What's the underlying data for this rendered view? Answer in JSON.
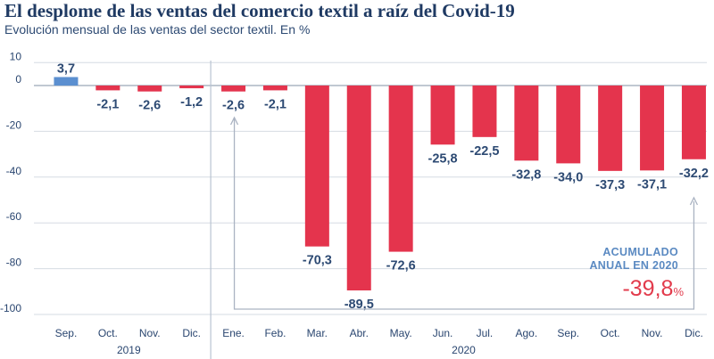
{
  "chart_data": {
    "type": "bar",
    "title": "El desplome de las ventas del comercio textil a raíz del Covid-19",
    "subtitle": "Evolución mensual de las ventas del sector textil. En %",
    "categories": [
      "Sep.",
      "Oct.",
      "Nov.",
      "Dic.",
      "Ene.",
      "Feb.",
      "Mar.",
      "Abr.",
      "May.",
      "Jun.",
      "Jul.",
      "Ago.",
      "Sep.",
      "Oct.",
      "Nov.",
      "Dic."
    ],
    "values": [
      3.7,
      -2.1,
      -2.6,
      -1.2,
      -2.6,
      -2.1,
      -70.3,
      -89.5,
      -72.6,
      -25.8,
      -22.5,
      -32.8,
      -34.0,
      -37.3,
      -37.1,
      -32.2
    ],
    "value_labels": [
      "3,7",
      "-2,1",
      "-2,6",
      "-1,2",
      "-2,6",
      "-2,1",
      "-70,3",
      "-89,5",
      "-72,6",
      "-25,8",
      "-22,5",
      "-32,8",
      "-34,0",
      "-37,3",
      "-37,1",
      "-32,2"
    ],
    "years": [
      {
        "label": "2019",
        "start": 0,
        "end": 3
      },
      {
        "label": "2020",
        "start": 4,
        "end": 15
      }
    ],
    "yticks": [
      10,
      0,
      -20,
      -40,
      -60,
      -80,
      -100
    ],
    "ylim": [
      -100,
      10
    ],
    "colors": {
      "positive": "#5b8fd0",
      "negative": "#e4344d"
    },
    "annotation": {
      "label_line1": "ACUMULADO",
      "label_line2": "ANUAL EN 2020",
      "value": "-39,8",
      "unit": "%"
    }
  }
}
